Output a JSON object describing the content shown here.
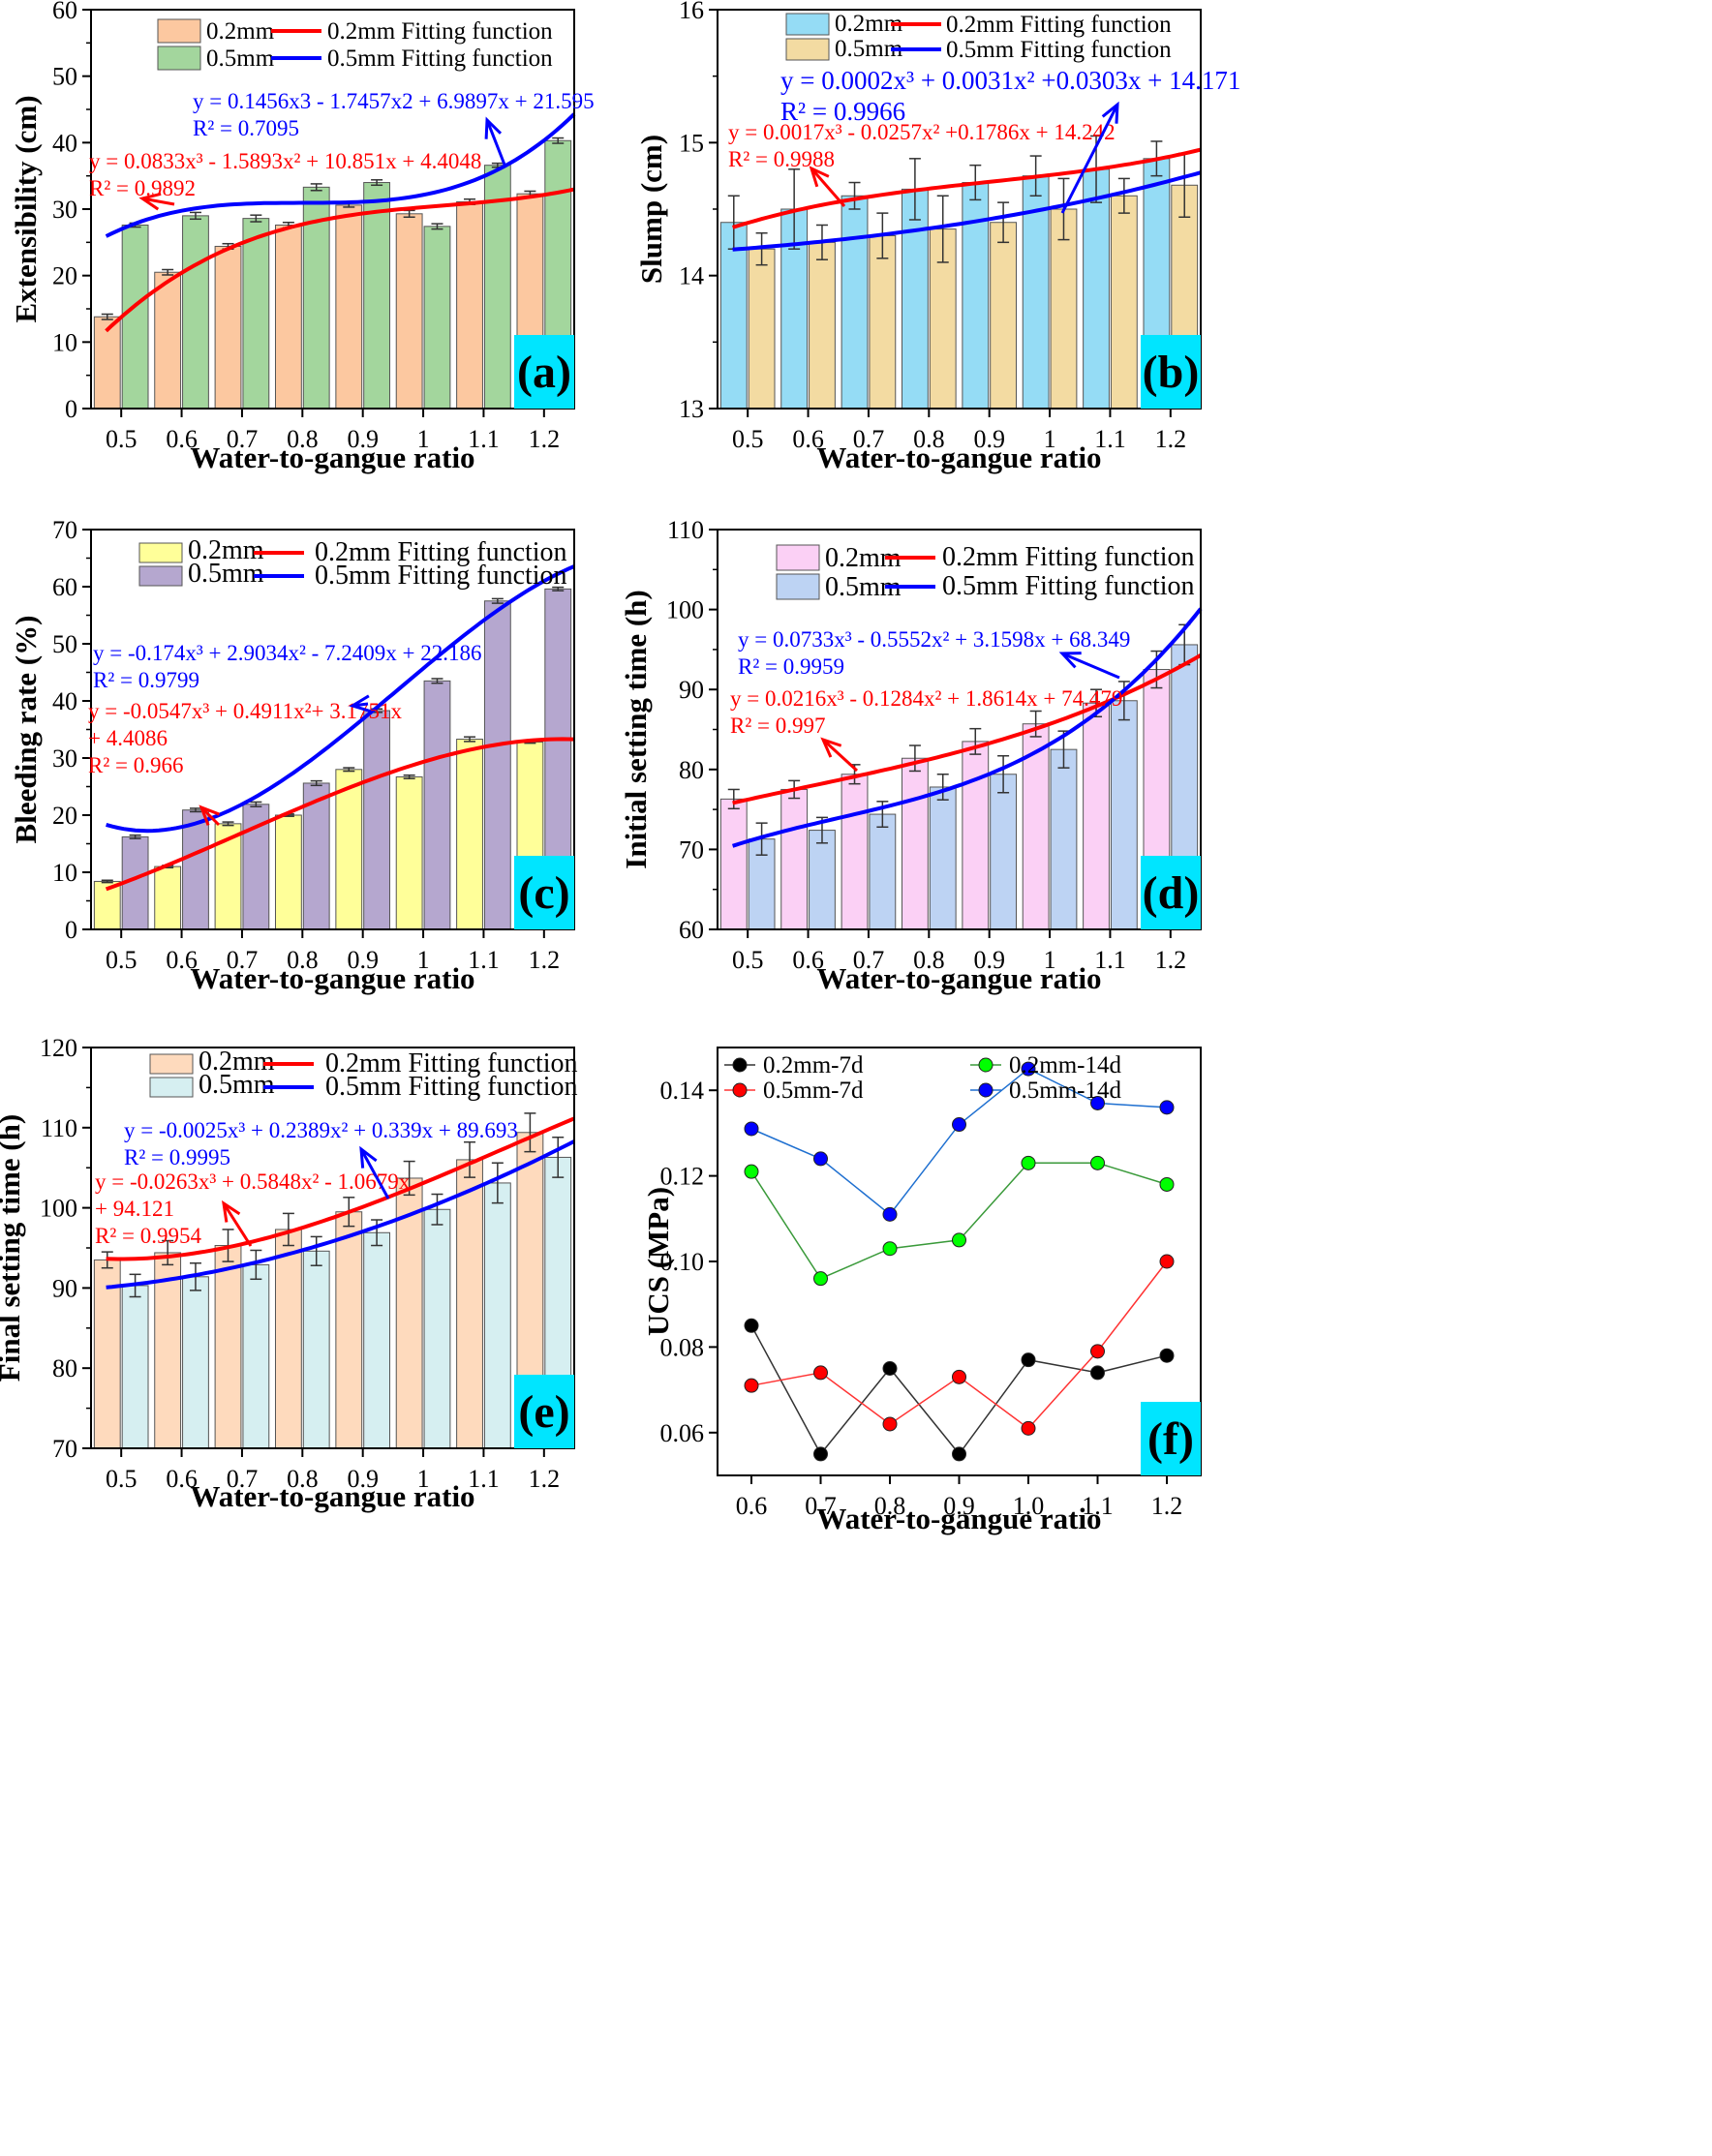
{
  "colors": {
    "red": "#ff0000",
    "blue": "#0000ff",
    "cyan": "#00e5ff",
    "orange_bar": "#fcc8a0",
    "green_bar": "#a3d69d",
    "sky_bar": "#95dcf5",
    "tan_bar": "#f3dba2",
    "yellow_bar": "#ffff99",
    "purple_bar": "#b5a7cf",
    "pink_bar": "#fbd0f5",
    "lav_bar": "#bdd3f3",
    "peach_bar": "#fedabd",
    "ice_bar": "#d6eff1"
  },
  "chart_data": [
    {
      "id": "a",
      "type": "bar",
      "panel_label": "(a)",
      "xlabel": "Water-to-gangue ratio",
      "ylabel": "Extensibility (cm)",
      "ylim": [
        0,
        60
      ],
      "yticks": [
        "0",
        "10",
        "20",
        "30",
        "40",
        "50",
        "60"
      ],
      "categories": [
        "0.5",
        "0.6",
        "0.7",
        "0.8",
        "0.9",
        "1",
        "1.1",
        "1.2"
      ],
      "series": [
        {
          "name": "0.2mm",
          "values": [
            13.8,
            20.5,
            24.4,
            27.6,
            30.6,
            29.3,
            31.1,
            32.3
          ],
          "errors": [
            0.4,
            0.4,
            0.4,
            0.4,
            0.3,
            0.5,
            0.4,
            0.4
          ]
        },
        {
          "name": "0.5mm",
          "values": [
            27.6,
            29.0,
            28.6,
            33.3,
            34.0,
            27.4,
            36.6,
            40.3
          ],
          "errors": [
            0.3,
            0.5,
            0.5,
            0.5,
            0.4,
            0.4,
            0.3,
            0.4
          ]
        }
      ],
      "fits": [
        {
          "name": "0.2mm Fitting function",
          "equation": "y = 0.0833x³ - 1.5893x² + 10.851x + 4.4048",
          "r2": "R² = 0.9892",
          "coef": [
            0.0833,
            -1.5893,
            10.851,
            4.4048
          ]
        },
        {
          "name": "0.5mm Fitting function",
          "equation": "y = 0.1456x3 - 1.7457x2 + 6.9897x + 21.595",
          "r2": "R² = 0.7095",
          "coef": [
            0.1456,
            -1.7457,
            6.9897,
            21.595
          ]
        }
      ]
    },
    {
      "id": "b",
      "type": "bar",
      "panel_label": "(b)",
      "xlabel": "Water-to-gangue ratio",
      "ylabel": "Slump (cm)",
      "ylim": [
        13,
        16
      ],
      "yticks": [
        "13",
        "14",
        "15",
        "16"
      ],
      "categories": [
        "0.5",
        "0.6",
        "0.7",
        "0.8",
        "0.9",
        "1",
        "1.1",
        "1.2"
      ],
      "series": [
        {
          "name": "0.2mm",
          "values": [
            14.4,
            14.5,
            14.6,
            14.65,
            14.7,
            14.75,
            14.8,
            14.88
          ],
          "errors": [
            0.2,
            0.3,
            0.1,
            0.23,
            0.13,
            0.15,
            0.25,
            0.13
          ]
        },
        {
          "name": "0.5mm",
          "values": [
            14.2,
            14.25,
            14.3,
            14.35,
            14.4,
            14.5,
            14.6,
            14.68
          ],
          "errors": [
            0.12,
            0.13,
            0.17,
            0.25,
            0.15,
            0.23,
            0.13,
            0.24
          ]
        }
      ],
      "fits": [
        {
          "name": "0.2mm Fitting function",
          "equation": "y = 0.0017x³ - 0.0257x² +0.1786x + 14.242",
          "r2": "R² = 0.9988",
          "coef": [
            0.0017,
            -0.0257,
            0.1786,
            14.242
          ]
        },
        {
          "name": "0.5mm Fitting function",
          "equation": "y = 0.0002x³ + 0.0031x² +0.0303x + 14.171",
          "r2": "R² = 0.9966",
          "coef": [
            0.0002,
            0.0031,
            0.0303,
            14.171
          ]
        }
      ]
    },
    {
      "id": "c",
      "type": "bar",
      "panel_label": "(c)",
      "xlabel": "Water-to-gangue ratio",
      "ylabel": "Bleeding rate (%)",
      "ylim": [
        0,
        70
      ],
      "yticks": [
        "0",
        "10",
        "20",
        "30",
        "40",
        "50",
        "60",
        "70"
      ],
      "categories": [
        "0.5",
        "0.6",
        "0.7",
        "0.8",
        "0.9",
        "1",
        "1.1",
        "1.2"
      ],
      "series": [
        {
          "name": "0.2mm",
          "values": [
            8.4,
            11.0,
            18.5,
            20.0,
            28.0,
            26.7,
            33.3,
            32.8
          ],
          "errors": [
            0.2,
            0.2,
            0.3,
            0.2,
            0.3,
            0.3,
            0.4,
            0.2
          ]
        },
        {
          "name": "0.5mm",
          "values": [
            16.2,
            20.9,
            21.9,
            25.6,
            38.3,
            43.5,
            57.5,
            59.6
          ],
          "errors": [
            0.3,
            0.3,
            0.4,
            0.4,
            0.3,
            0.4,
            0.4,
            0.3
          ]
        }
      ],
      "fits": [
        {
          "name": "0.2mm Fitting function",
          "equation": "y = -0.0547x³ + 0.4911x²+ 3.1751x",
          "equation2": "+ 4.4086",
          "r2": "R² = 0.966",
          "coef": [
            -0.0547,
            0.4911,
            3.1751,
            4.4086
          ]
        },
        {
          "name": "0.5mm Fitting function",
          "equation": "y = -0.174x³ + 2.9034x² - 7.2409x + 22.186",
          "r2": "R² = 0.9799",
          "coef": [
            -0.174,
            2.9034,
            -7.2409,
            22.186
          ]
        }
      ]
    },
    {
      "id": "d",
      "type": "bar",
      "panel_label": "(d)",
      "xlabel": "Water-to-gangue ratio",
      "ylabel": "Initial setting time (h)",
      "ylim": [
        60,
        110
      ],
      "yticks": [
        "60",
        "70",
        "80",
        "90",
        "100",
        "110"
      ],
      "categories": [
        "0.5",
        "0.6",
        "0.7",
        "0.8",
        "0.9",
        "1",
        "1.1",
        "1.2"
      ],
      "series": [
        {
          "name": "0.2mm",
          "values": [
            76.3,
            77.5,
            79.4,
            81.4,
            83.5,
            85.7,
            88.3,
            92.5
          ],
          "errors": [
            1.2,
            1.1,
            1.2,
            1.6,
            1.6,
            1.6,
            1.7,
            2.3
          ]
        },
        {
          "name": "0.5mm",
          "values": [
            71.3,
            72.4,
            74.4,
            77.8,
            79.4,
            82.5,
            88.6,
            95.6
          ],
          "errors": [
            2.0,
            1.6,
            1.6,
            1.6,
            2.3,
            2.3,
            2.4,
            2.5
          ]
        }
      ],
      "fits": [
        {
          "name": "0.2mm Fitting function",
          "equation": "y = 0.0216x³ - 0.1284x² + 1.8614x + 74.479",
          "r2": "R² = 0.997",
          "coef": [
            0.0216,
            -0.1284,
            1.8614,
            74.479
          ]
        },
        {
          "name": "0.5mm Fitting function",
          "equation": "y = 0.0733x³ - 0.5552x² + 3.1598x + 68.349",
          "r2": "R² = 0.9959",
          "coef": [
            0.0733,
            -0.5552,
            3.1598,
            68.349
          ]
        }
      ]
    },
    {
      "id": "e",
      "type": "bar",
      "panel_label": "(e)",
      "xlabel": "Water-to-gangue ratio",
      "ylabel": "Final setting time (h)",
      "ylim": [
        70,
        120
      ],
      "yticks": [
        "70",
        "80",
        "90",
        "100",
        "110",
        "120"
      ],
      "categories": [
        "0.5",
        "0.6",
        "0.7",
        "0.8",
        "0.9",
        "1",
        "1.1",
        "1.2"
      ],
      "series": [
        {
          "name": "0.2mm",
          "values": [
            93.5,
            94.4,
            95.3,
            97.3,
            99.5,
            103.7,
            106.0,
            109.4
          ],
          "errors": [
            1.0,
            1.5,
            2.0,
            2.0,
            1.8,
            2.1,
            2.2,
            2.4
          ]
        },
        {
          "name": "0.5mm",
          "values": [
            90.3,
            91.4,
            92.9,
            94.6,
            96.9,
            99.8,
            103.1,
            106.3
          ],
          "errors": [
            1.4,
            1.7,
            1.8,
            1.8,
            1.6,
            1.9,
            2.5,
            2.5
          ]
        }
      ],
      "fits": [
        {
          "name": "0.2mm Fitting function",
          "equation": "y = -0.0263x³ + 0.5848x² - 1.0679x",
          "equation2": "+ 94.121",
          "r2": "R² = 0.9954",
          "coef": [
            -0.0263,
            0.5848,
            -1.0679,
            94.121
          ]
        },
        {
          "name": "0.5mm Fitting function",
          "equation": "y = -0.0025x³ + 0.2389x² + 0.339x + 89.693",
          "r2": "R² = 0.9995",
          "coef": [
            -0.0025,
            0.2389,
            0.339,
            89.693
          ]
        }
      ]
    },
    {
      "id": "f",
      "type": "line",
      "panel_label": "(f)",
      "xlabel": "Water-to-gangue ratio",
      "ylabel": "UCS (MPa)",
      "ylim": [
        0.05,
        0.15
      ],
      "yticks": [
        "0.06",
        "0.08",
        "0.10",
        "0.12",
        "0.14"
      ],
      "categories": [
        "0.6",
        "0.7",
        "0.8",
        "0.9",
        "1.0",
        "1.1",
        "1.2"
      ],
      "series": [
        {
          "name": "0.2mm-7d",
          "values": [
            0.085,
            0.055,
            0.075,
            0.055,
            0.077,
            0.074,
            0.078
          ],
          "marker": "#000000",
          "line": "#333333"
        },
        {
          "name": "0.5mm-7d",
          "values": [
            0.071,
            0.074,
            0.062,
            0.073,
            0.061,
            0.079,
            0.1
          ],
          "marker": "#ff0000",
          "line": "#ff3333"
        },
        {
          "name": "0.2mm-14d",
          "values": [
            0.121,
            0.096,
            0.103,
            0.105,
            0.123,
            0.123,
            0.118
          ],
          "marker": "#00ff00",
          "line": "#3a9a3a"
        },
        {
          "name": "0.5mm-14d",
          "values": [
            0.131,
            0.124,
            0.111,
            0.132,
            0.145,
            0.137,
            0.136
          ],
          "marker": "#0000ff",
          "line": "#1e6fd0"
        }
      ]
    }
  ]
}
